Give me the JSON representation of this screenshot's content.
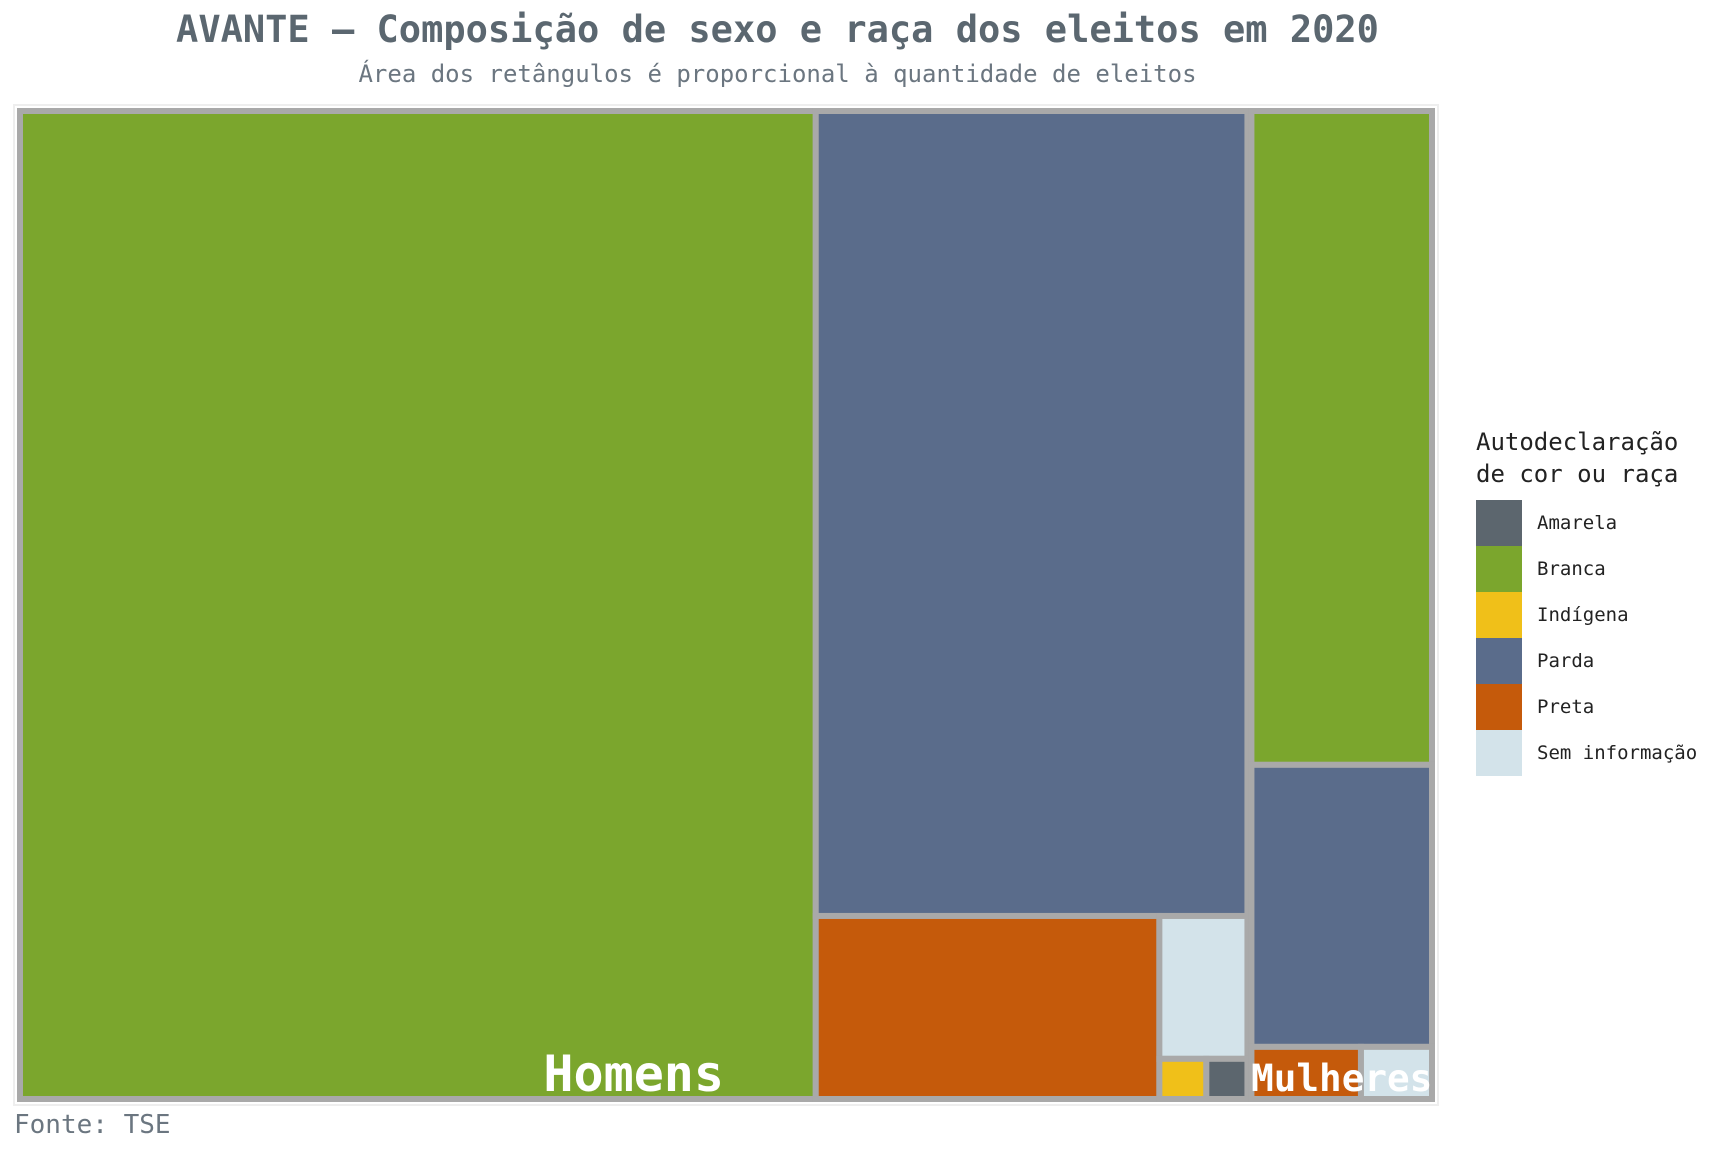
{
  "title": "AVANTE – Composição de sexo e raça dos eleitos em 2020",
  "subtitle": "Área dos retângulos é proporcional à quantidade de eleitos",
  "caption": "Fonte: TSE",
  "legend": {
    "title_line1": "Autodeclaração",
    "title_line2": "de cor ou raça",
    "items": [
      {
        "label": "Amarela",
        "color": "#5c666e"
      },
      {
        "label": "Branca",
        "color": "#7ba62d"
      },
      {
        "label": "Indígena",
        "color": "#f0c019"
      },
      {
        "label": "Parda",
        "color": "#5a6c8b"
      },
      {
        "label": "Preta",
        "color": "#c55a0b"
      },
      {
        "label": "Sem informação",
        "color": "#d3e3ea"
      }
    ]
  },
  "chart_data": {
    "type": "treemap",
    "groups": [
      {
        "name": "Homens",
        "values": {
          "Branca": 1000,
          "Parda": 442,
          "Preta": 80,
          "Sem informação": 16,
          "Indígena": 2.4,
          "Amarela": 2.1
        }
      },
      {
        "name": "Mulheres",
        "values": {
          "Branca": 153,
          "Parda": 66,
          "Preta": 7.4,
          "Sem informação": 4.8
        }
      }
    ],
    "legend_placement": "right"
  }
}
